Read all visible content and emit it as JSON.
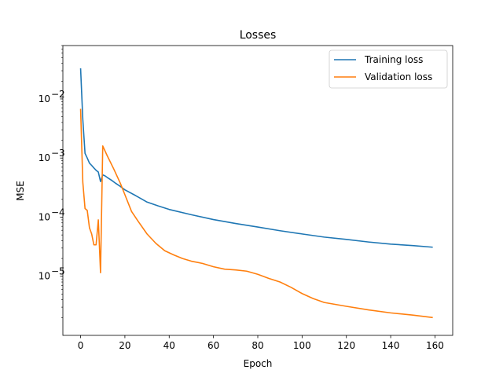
{
  "chart_data": {
    "type": "line",
    "title": "Losses",
    "xlabel": "Epoch",
    "ylabel": "MSE",
    "xlim": [
      -8,
      168
    ],
    "ylim": [
      1e-06,
      0.08
    ],
    "yscale": "log",
    "grid": false,
    "legend_position": "top-right",
    "x_ticks": [
      0,
      20,
      40,
      60,
      80,
      100,
      120,
      140,
      160
    ],
    "x_tick_labels": [
      "0",
      "20",
      "40",
      "60",
      "80",
      "100",
      "120",
      "140",
      "160"
    ],
    "y_ticks": [
      1e-05,
      0.0001,
      0.001,
      0.01
    ],
    "y_tick_labels": [
      {
        "base": "10",
        "exp": "−5"
      },
      {
        "base": "10",
        "exp": "−4"
      },
      {
        "base": "10",
        "exp": "−3"
      },
      {
        "base": "10",
        "exp": "−2"
      }
    ],
    "series": [
      {
        "name": "Training loss",
        "color": "#1f77b4",
        "x": [
          0,
          1,
          2,
          3,
          4,
          5,
          6,
          7,
          8,
          9,
          10,
          11,
          12,
          14,
          16,
          18,
          20,
          25,
          30,
          35,
          40,
          50,
          60,
          70,
          80,
          90,
          100,
          110,
          120,
          130,
          140,
          150,
          159
        ],
        "y": [
          0.033,
          0.0045,
          0.0012,
          0.001,
          0.00082,
          0.00075,
          0.00068,
          0.00062,
          0.00058,
          0.0004,
          0.00052,
          0.0005,
          0.00047,
          0.00042,
          0.00037,
          0.00033,
          0.00029,
          0.00023,
          0.00018,
          0.000155,
          0.000135,
          0.00011,
          9.1e-05,
          7.8e-05,
          6.8e-05,
          5.9e-05,
          5.2e-05,
          4.6e-05,
          4.2e-05,
          3.8e-05,
          3.5e-05,
          3.3e-05,
          3.1e-05
        ]
      },
      {
        "name": "Validation loss",
        "color": "#ff7f0e",
        "x": [
          0,
          1,
          2,
          3,
          4,
          5,
          6,
          7,
          8,
          9,
          10,
          12,
          15,
          18,
          20,
          23,
          26,
          30,
          34,
          38,
          42,
          46,
          50,
          55,
          60,
          65,
          70,
          75,
          80,
          85,
          90,
          95,
          100,
          105,
          110,
          120,
          130,
          140,
          150,
          159
        ],
        "y": [
          0.0068,
          0.00039,
          0.00014,
          0.00013,
          6.6e-05,
          5.2e-05,
          3.4e-05,
          3.4e-05,
          9e-05,
          1.15e-05,
          0.0016,
          0.0011,
          0.00065,
          0.00037,
          0.00024,
          0.000125,
          8.5e-05,
          5.2e-05,
          3.6e-05,
          2.7e-05,
          2.3e-05,
          2e-05,
          1.8e-05,
          1.65e-05,
          1.45e-05,
          1.32e-05,
          1.28e-05,
          1.22e-05,
          1.08e-05,
          9.2e-06,
          8e-06,
          6.5e-06,
          5.1e-06,
          4.2e-06,
          3.6e-06,
          3.1e-06,
          2.7e-06,
          2.4e-06,
          2.2e-06,
          2e-06
        ]
      }
    ]
  }
}
